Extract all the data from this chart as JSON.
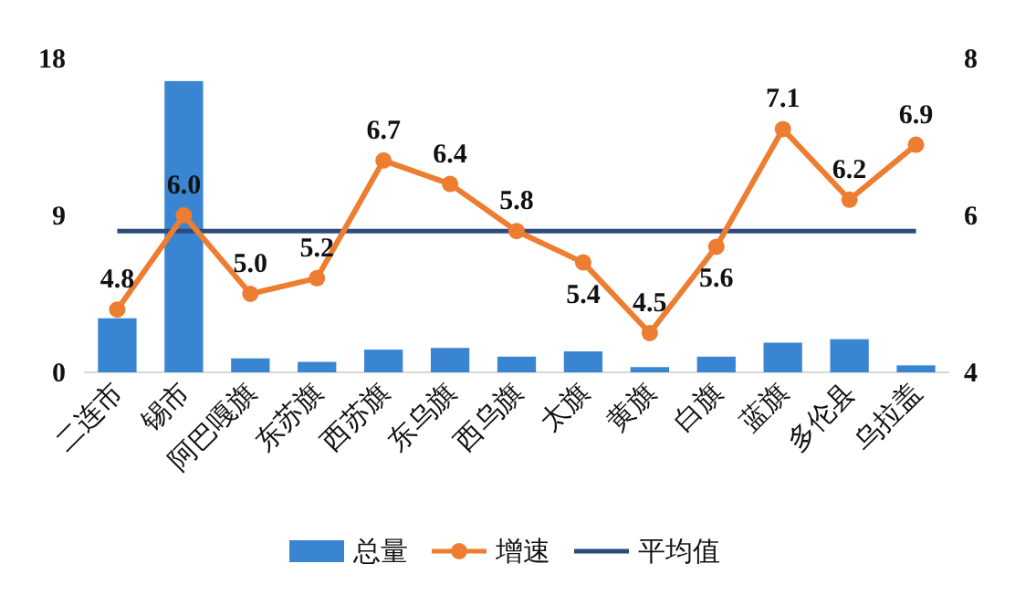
{
  "chart_data": {
    "type": "bar",
    "categories": [
      "二连市",
      "锡市",
      "阿巴嘎旗",
      "东苏旗",
      "西苏旗",
      "东乌旗",
      "西乌旗",
      "太旗",
      "黄旗",
      "白旗",
      "蓝旗",
      "多伦县",
      "乌拉盖"
    ],
    "series": [
      {
        "name": "总量",
        "color": "#3a85d2",
        "values": [
          3.1,
          16.7,
          0.8,
          0.6,
          1.3,
          1.4,
          0.9,
          1.2,
          0.3,
          0.9,
          1.7,
          1.9,
          0.4
        ]
      },
      {
        "name": "增速",
        "type": "line",
        "axis": "y2",
        "color": "#ed7d31",
        "marker": "circle",
        "values": [
          4.8,
          6.0,
          5.0,
          5.2,
          6.7,
          6.4,
          5.8,
          5.4,
          4.5,
          5.6,
          7.1,
          6.2,
          6.9
        ],
        "value_labels": [
          "4.8",
          "6.0",
          "5.0",
          "5.2",
          "6.7",
          "6.4",
          "5.8",
          "5.4",
          "4.5",
          "5.6",
          "7.1",
          "6.2",
          "6.9"
        ]
      },
      {
        "name": "平均值",
        "type": "line",
        "axis": "y2",
        "color": "#2f4b7c",
        "marker": "none",
        "values": [
          5.8,
          5.8,
          5.8,
          5.8,
          5.8,
          5.8,
          5.8,
          5.8,
          5.8,
          5.8,
          5.8,
          5.8,
          5.8
        ]
      }
    ],
    "ylim": [
      0,
      18
    ],
    "yticks": [
      0,
      9,
      18
    ],
    "y2lim": [
      4,
      8
    ],
    "y2ticks": [
      4,
      6,
      8
    ],
    "grid": false,
    "legend": "bottom"
  }
}
